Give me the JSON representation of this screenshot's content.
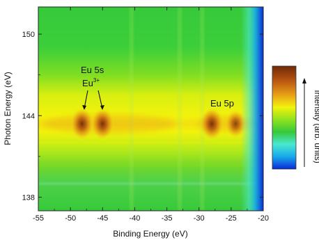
{
  "chart_data": {
    "type": "heatmap",
    "xlabel": "Binding Energy (eV)",
    "ylabel": "Photon Energy (eV)",
    "colorbar_label": "Intensity (arb. units)",
    "xlim": [
      -55,
      -20
    ],
    "ylim": [
      137,
      152
    ],
    "x_ticks": [
      "-55",
      "-50",
      "-45",
      "-40",
      "-35",
      "-30",
      "-25",
      "-20"
    ],
    "y_ticks": [
      "138",
      "144",
      "150"
    ],
    "colormap": [
      "#0a2bd8",
      "#18a8ea",
      "#49e8d0",
      "#36c93a",
      "#8fe21e",
      "#f2f20c",
      "#e9a018",
      "#b85410",
      "#6e2a08"
    ],
    "colormap_positions": [
      0,
      0.12,
      0.24,
      0.36,
      0.48,
      0.6,
      0.72,
      0.86,
      1
    ],
    "resonance_photon_energy": 143.4,
    "peaks": [
      {
        "label": "Eu 5s Eu3+",
        "binding_energy": -48.2,
        "intensity": 0.95
      },
      {
        "label": "Eu 5s",
        "binding_energy": -45.0,
        "intensity": 0.95
      },
      {
        "label": "Eu 5p",
        "binding_energy": -28.0,
        "intensity": 1.0
      },
      {
        "label": "",
        "binding_energy": -24.3,
        "intensity": 0.72
      }
    ],
    "annotations": {
      "eu5s": "Eu 5s",
      "eu3_base": "Eu",
      "eu3_sup": "3+",
      "eu5p": "Eu 5p"
    }
  }
}
